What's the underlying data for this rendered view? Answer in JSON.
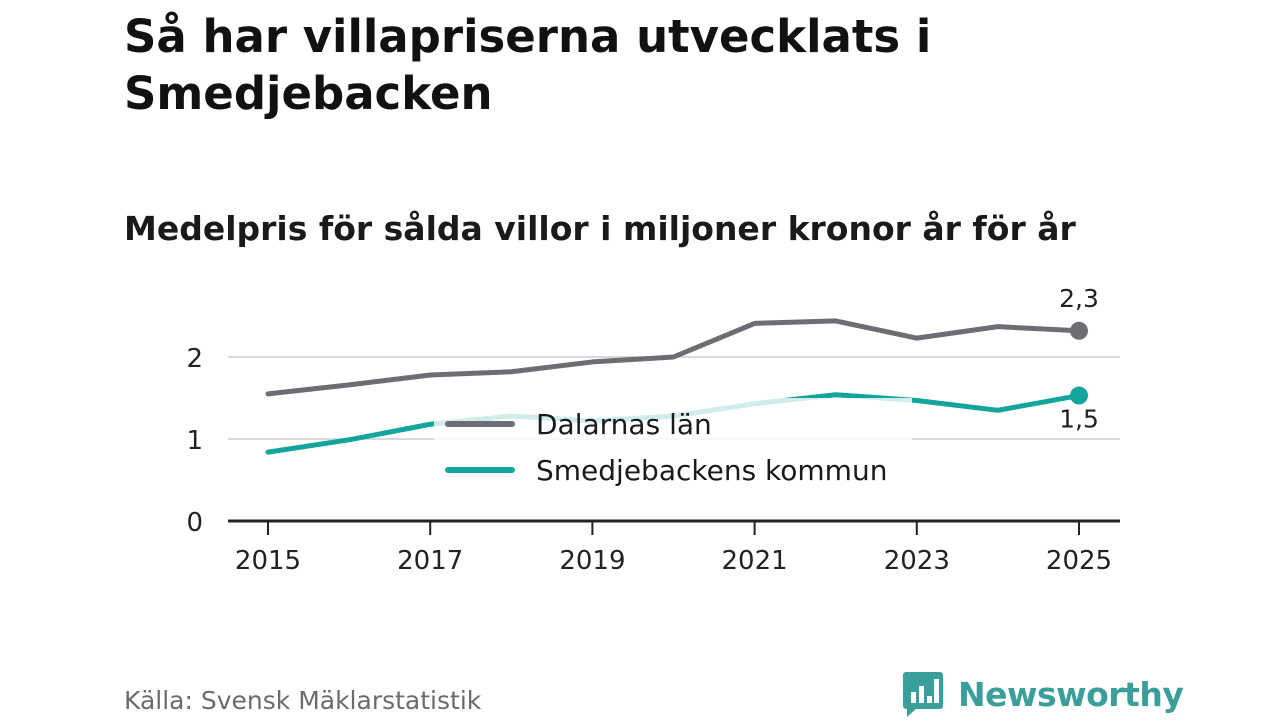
{
  "title": "Så har villapriserna utvecklats i Smedjebacken",
  "subtitle": "Medelpris för sålda villor i miljoner kronor år för år",
  "source": "Källa: Svensk Mäklarstatistik",
  "brand": "Newsworthy",
  "colors": {
    "dalarna": "#6e6d73",
    "smedjebacken": "#13a59b",
    "grid": "#d9d9d9",
    "axis": "#222222"
  },
  "chart_data": {
    "type": "line",
    "title": "Så har villapriserna utvecklats i Smedjebacken",
    "subtitle": "Medelpris för sålda villor i miljoner kronor år för år",
    "xlabel": "",
    "ylabel": "",
    "x": [
      2015,
      2016,
      2017,
      2018,
      2019,
      2020,
      2021,
      2022,
      2023,
      2024,
      2025
    ],
    "xticks": [
      "2015",
      "2017",
      "2019",
      "2021",
      "2023",
      "2025"
    ],
    "yticks": [
      "0",
      "1",
      "2"
    ],
    "ylim": [
      0,
      2.5
    ],
    "grid": true,
    "legend_position": "center",
    "series": [
      {
        "name": "Dalarnas län",
        "values": [
          1.55,
          1.66,
          1.78,
          1.82,
          1.94,
          2.0,
          2.41,
          2.44,
          2.23,
          2.37,
          2.32
        ],
        "end_label": "2,3"
      },
      {
        "name": "Smedjebackens kommun",
        "values": [
          0.84,
          0.99,
          1.18,
          1.28,
          1.22,
          1.28,
          1.43,
          1.54,
          1.47,
          1.35,
          1.53
        ],
        "end_label": "1,5"
      }
    ]
  }
}
